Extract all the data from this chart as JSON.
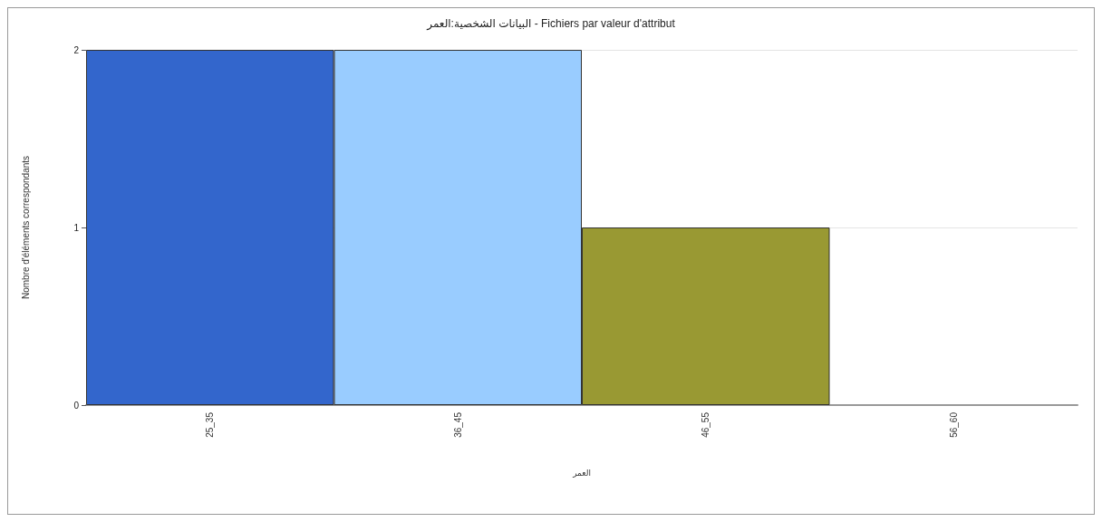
{
  "chart_data": {
    "type": "bar",
    "title": "البيانات الشخصية:العمر - Fichiers par valeur d'attribut",
    "xlabel": "العمر",
    "ylabel": "Nombre d'éléments correspondants",
    "categories": [
      "25_35",
      "36_45",
      "46_55",
      "56_60"
    ],
    "values": [
      2,
      2,
      1,
      0
    ],
    "colors": [
      "#3366cc",
      "#99ccff",
      "#999933",
      "#ffffff"
    ],
    "ylim": [
      0,
      2
    ],
    "yticks": [
      0,
      1,
      2
    ],
    "grid": "y"
  }
}
